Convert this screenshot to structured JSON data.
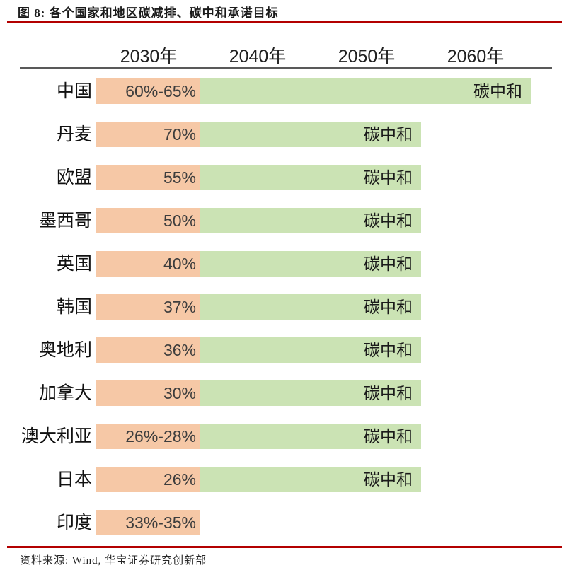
{
  "figure": {
    "title": "图 8: 各个国家和地区碳减排、碳中和承诺目标",
    "source": "资料来源: Wind, 华宝证券研究创新部"
  },
  "chart_data": {
    "type": "bar",
    "orientation": "horizontal",
    "title": "图 8: 各个国家和地区碳减排、碳中和承诺目标",
    "columns": [
      "2030年",
      "2040年",
      "2050年",
      "2060年"
    ],
    "legend": "none",
    "grid": "off",
    "rows": [
      {
        "country": "中国",
        "target_2030": "60%-65%",
        "neutral_label": "碳中和",
        "carbon_neutral_by": "2060年"
      },
      {
        "country": "丹麦",
        "target_2030": "70%",
        "neutral_label": "碳中和",
        "carbon_neutral_by": "2050年"
      },
      {
        "country": "欧盟",
        "target_2030": "55%",
        "neutral_label": "碳中和",
        "carbon_neutral_by": "2050年"
      },
      {
        "country": "墨西哥",
        "target_2030": "50%",
        "neutral_label": "碳中和",
        "carbon_neutral_by": "2050年"
      },
      {
        "country": "英国",
        "target_2030": "40%",
        "neutral_label": "碳中和",
        "carbon_neutral_by": "2050年"
      },
      {
        "country": "韩国",
        "target_2030": "37%",
        "neutral_label": "碳中和",
        "carbon_neutral_by": "2050年"
      },
      {
        "country": "奥地利",
        "target_2030": "36%",
        "neutral_label": "碳中和",
        "carbon_neutral_by": "2050年"
      },
      {
        "country": "加拿大",
        "target_2030": "30%",
        "neutral_label": "碳中和",
        "carbon_neutral_by": "2050年"
      },
      {
        "country": "澳大利亚",
        "target_2030": "26%-28%",
        "neutral_label": "碳中和",
        "carbon_neutral_by": "2050年"
      },
      {
        "country": "日本",
        "target_2030": "26%",
        "neutral_label": "碳中和",
        "carbon_neutral_by": "2050年"
      },
      {
        "country": "印度",
        "target_2030": "33%-35%",
        "neutral_label": ""
      }
    ],
    "colors": {
      "bar_2030": "#f6c8a6",
      "bar_neutral": "#cbe3b4",
      "rule_red": "#b30000",
      "rule_gray": "#595959"
    }
  }
}
